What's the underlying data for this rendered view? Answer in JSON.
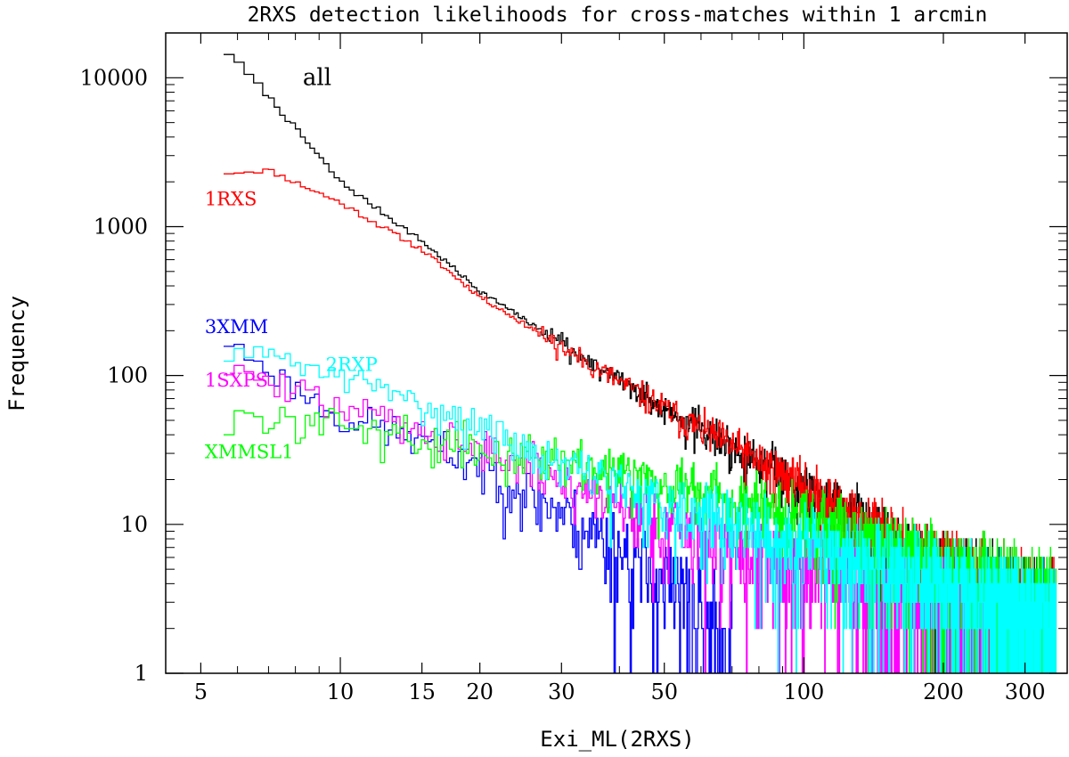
{
  "chart_data": {
    "type": "line",
    "style": "step-histogram",
    "title": "2RXS detection likelihoods for cross-matches within 1 arcmin",
    "xlabel": "Exi_ML(2RXS)",
    "ylabel": "Frequency",
    "xscale": "log",
    "yscale": "log",
    "xlim": [
      4.2,
      370
    ],
    "ylim": [
      1,
      20000
    ],
    "x_ticks": [
      5,
      10,
      15,
      20,
      30,
      50,
      100,
      200,
      300
    ],
    "x_tick_labels": [
      "5",
      "10",
      "15",
      "20",
      "30",
      "50",
      "100",
      "200",
      "300"
    ],
    "y_ticks": [
      1,
      10,
      100,
      1000,
      10000
    ],
    "y_tick_labels": [
      "1",
      "10",
      "100",
      "1000",
      "10000"
    ],
    "series": [
      {
        "name": "all",
        "color": "#000000",
        "x": [
          5.6,
          7.0,
          10,
          15,
          20,
          30,
          50,
          100,
          150,
          200,
          300,
          350
        ],
        "y": [
          16000,
          7500,
          2000,
          800,
          370,
          165,
          60,
          18,
          8,
          4.5,
          2.8,
          2.3
        ]
      },
      {
        "name": "1RXS",
        "color": "#ff0000",
        "x": [
          5.6,
          7.0,
          10,
          15,
          20,
          30,
          50,
          100,
          150,
          200,
          300,
          350
        ],
        "y": [
          2300,
          2400,
          1450,
          700,
          340,
          155,
          60,
          18,
          8,
          4.5,
          2.8,
          2.3
        ]
      },
      {
        "name": "3XMM",
        "color": "#0000ff",
        "x": [
          5.6,
          7.0,
          10,
          15,
          20,
          30,
          40,
          50,
          60,
          70
        ],
        "y": [
          175,
          110,
          52,
          38,
          25,
          12,
          7,
          4,
          2.5,
          1.5
        ]
      },
      {
        "name": "2RXP",
        "color": "#00ffff",
        "x": [
          5.6,
          7.0,
          10,
          15,
          20,
          30,
          50,
          100,
          150,
          200,
          300,
          350
        ],
        "y": [
          155,
          135,
          100,
          65,
          45,
          25,
          14,
          7,
          5,
          3.8,
          2.6,
          2.2
        ]
      },
      {
        "name": "1SXPS",
        "color": "#ff00ff",
        "x": [
          5.6,
          7.0,
          10,
          15,
          20,
          30,
          50,
          100,
          150,
          200,
          300,
          350
        ],
        "y": [
          120,
          90,
          62,
          45,
          32,
          20,
          10,
          5,
          3.5,
          2.8,
          2.0,
          1.8
        ]
      },
      {
        "name": "XMMSL1",
        "color": "#00ff00",
        "x": [
          5.6,
          7.0,
          10,
          15,
          20,
          30,
          50,
          100,
          150,
          200,
          300,
          350
        ],
        "y": [
          45,
          52,
          48,
          38,
          32,
          28,
          20,
          11,
          7,
          5,
          3.2,
          2.5
        ]
      }
    ],
    "annotations": [
      {
        "text": "all",
        "color": "#000000",
        "x": 8.3,
        "y": 10000
      },
      {
        "text": "1RXS",
        "color": "#ff0000",
        "x": 5.1,
        "y": 1550
      },
      {
        "text": "3XMM",
        "color": "#0000ff",
        "x": 5.1,
        "y": 215
      },
      {
        "text": "2RXP",
        "color": "#00ffff",
        "x": 9.3,
        "y": 120
      },
      {
        "text": "1SXPS",
        "color": "#ff00ff",
        "x": 5.1,
        "y": 94
      },
      {
        "text": "XMMSL1",
        "color": "#00ff00",
        "x": 5.1,
        "y": 31
      }
    ]
  }
}
